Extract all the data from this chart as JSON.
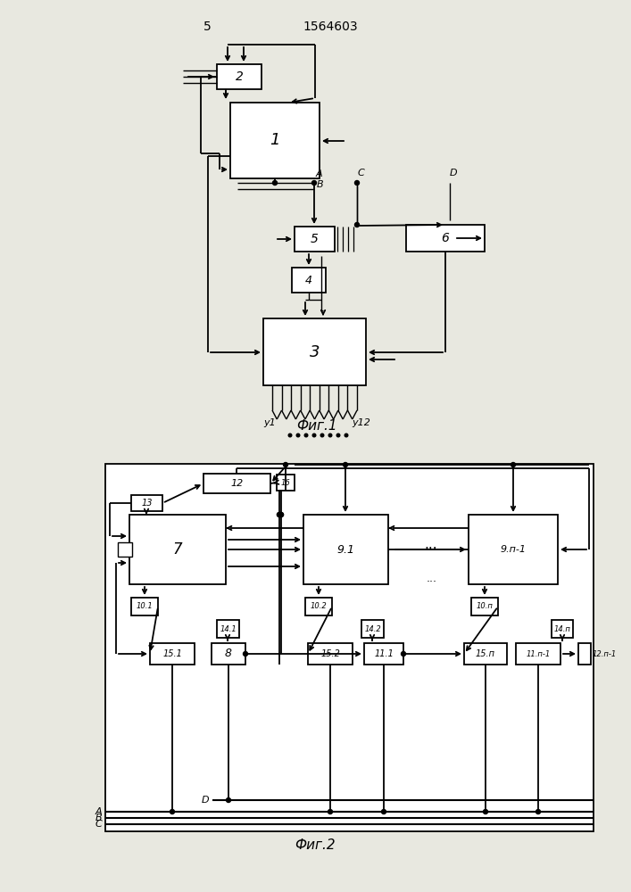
{
  "fig_width": 7.07,
  "fig_height": 10.0,
  "bg_color": "#e8e8e0",
  "header_number": "5",
  "header_patent": "1564603",
  "fig1_label": "Фиг.1",
  "fig2_label": "Фиг.2"
}
